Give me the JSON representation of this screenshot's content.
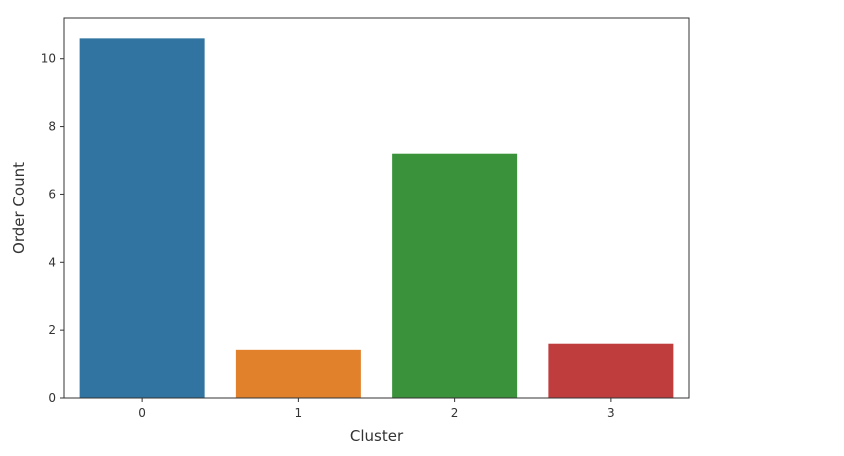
{
  "chart_data": {
    "type": "bar",
    "title": "",
    "xlabel": "Cluster",
    "ylabel": "Order Count",
    "categories": [
      "0",
      "1",
      "2",
      "3"
    ],
    "values": [
      10.6,
      1.42,
      7.2,
      1.6
    ],
    "colors": [
      "#3274a1",
      "#e1812c",
      "#3a923a",
      "#c03d3e"
    ],
    "ylim": [
      0,
      11.2
    ],
    "yticks": [
      0,
      2,
      4,
      6,
      8,
      10
    ],
    "grid": false,
    "legend": "none"
  }
}
